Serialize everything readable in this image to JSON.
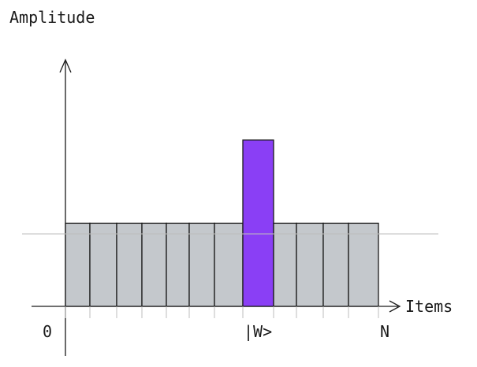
{
  "y_axis_label": "Amplitude",
  "x_axis_label": "Items",
  "tick_labels": {
    "start": "0",
    "marked": "|W>",
    "end": "N"
  },
  "colors": {
    "bar_fill": "#c4c8cc",
    "marked_fill": "#8a3ff5",
    "line": "#1a1a1a",
    "guide_line": "#bdbdbd"
  },
  "chart_data": {
    "type": "bar",
    "title": "",
    "xlabel": "Items",
    "ylabel": "Amplitude",
    "bar_count": 12,
    "marked_bar_index": 7,
    "uniform_amplitude": 1,
    "marked_amplitude": 2,
    "ylim": [
      0,
      3.4
    ]
  }
}
